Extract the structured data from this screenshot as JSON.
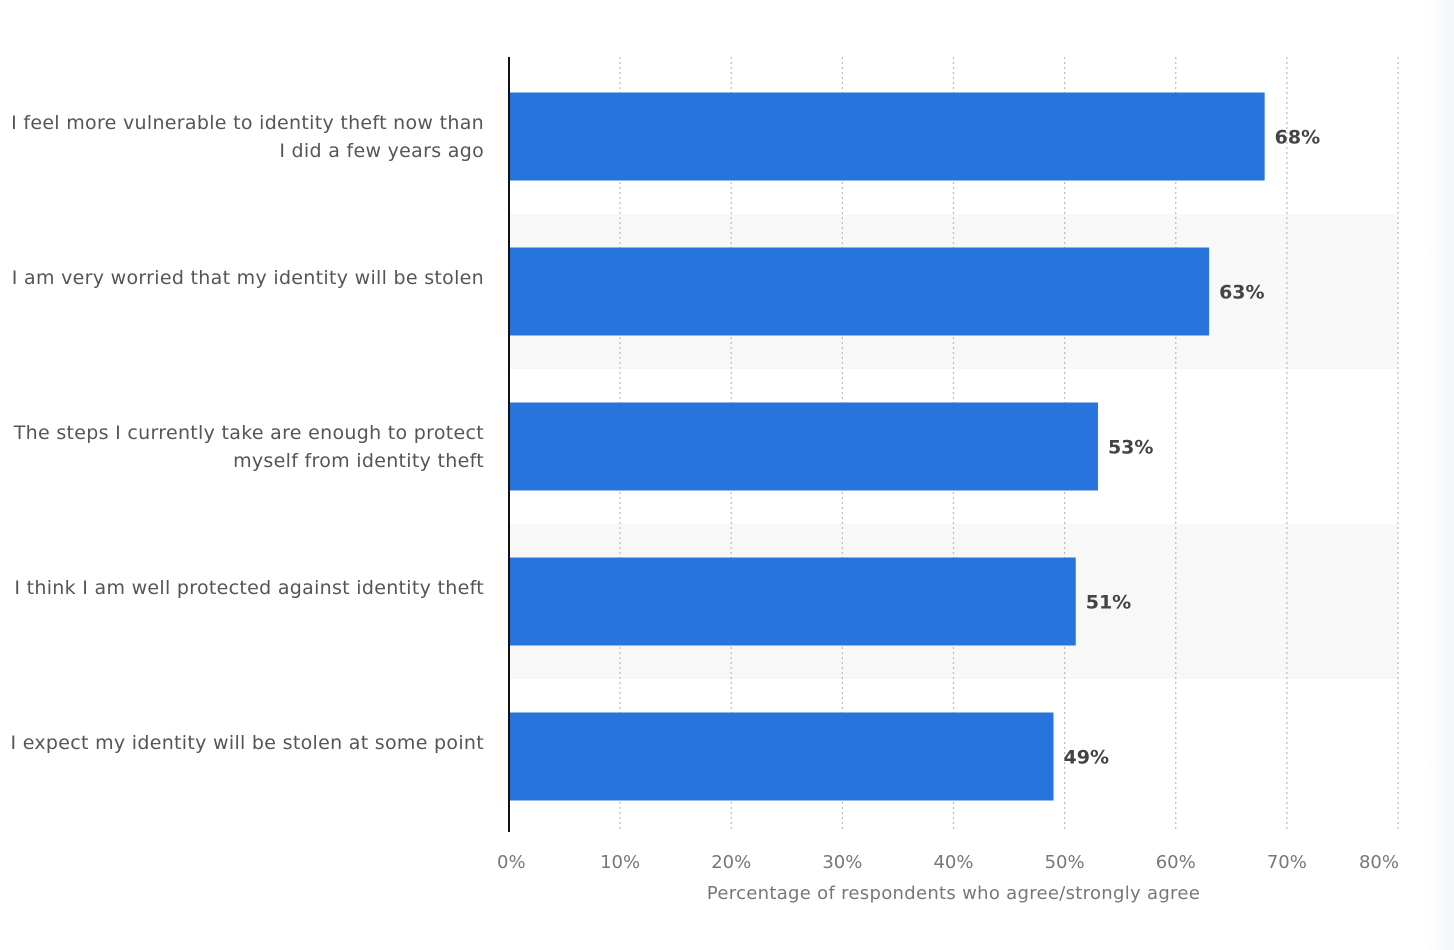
{
  "chart_data": {
    "type": "bar",
    "orientation": "horizontal",
    "categories": [
      "I feel more vulnerable to identity theft now than I did a few years ago",
      "I am very worried that my identity will be stolen",
      "The steps I currently take are enough to protect myself from identity theft",
      "I think I am well protected against identity theft",
      "I expect my identity will be stolen at some point"
    ],
    "values": [
      68,
      63,
      53,
      51,
      49
    ],
    "data_labels": [
      "68%",
      "63%",
      "53%",
      "51%",
      "49%"
    ],
    "xlabel": "Percentage of respondents who agree/strongly agree",
    "ylabel": "",
    "xlim": [
      0,
      80
    ],
    "xticks": [
      "0%",
      "10%",
      "20%",
      "30%",
      "40%",
      "50%",
      "60%",
      "70%",
      "80%"
    ],
    "grid": true,
    "bar_color": "#2775dc",
    "band_color": "#f8f8f8"
  }
}
